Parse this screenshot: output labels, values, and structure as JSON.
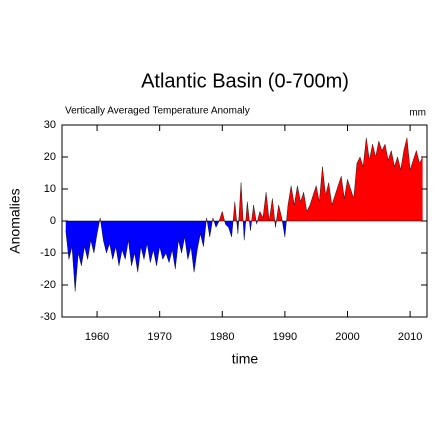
{
  "chart_data": {
    "type": "area",
    "title": "Atlantic Basin (0-700m)",
    "subtitle": "Vertically Averaged Temperature Anomaly",
    "unit_label": "mm",
    "x_label": "time",
    "y_label": "Anomalies",
    "pos_color": "#ff0000",
    "neg_color": "#0000ff",
    "grid": false,
    "xlim": [
      1954.4,
      2012.7
    ],
    "ylim": [
      -30,
      30
    ],
    "xticks": [
      1960,
      1970,
      1980,
      1990,
      2000,
      2010
    ],
    "yticks": [
      -30,
      -20,
      -10,
      0,
      10,
      20,
      30
    ],
    "x": [
      1955,
      1955.5,
      1956,
      1956.5,
      1957,
      1957.5,
      1958,
      1958.5,
      1959,
      1959.5,
      1960,
      1960.5,
      1961,
      1961.5,
      1962,
      1962.5,
      1963,
      1963.5,
      1964,
      1964.5,
      1965,
      1965.5,
      1966,
      1966.5,
      1967,
      1967.5,
      1968,
      1968.5,
      1969,
      1969.5,
      1970,
      1970.5,
      1971,
      1971.5,
      1972,
      1972.5,
      1973,
      1973.5,
      1974,
      1974.5,
      1975,
      1975.5,
      1976,
      1976.5,
      1977,
      1977.5,
      1978,
      1978.5,
      1979,
      1979.5,
      1980,
      1980.5,
      1981,
      1981.5,
      1982,
      1982.5,
      1983,
      1983.5,
      1984,
      1984.5,
      1985,
      1985.5,
      1986,
      1986.5,
      1987,
      1987.5,
      1988,
      1988.5,
      1989,
      1989.5,
      1990,
      1990.5,
      1991,
      1991.5,
      1992,
      1992.5,
      1993,
      1993.5,
      1994,
      1994.5,
      1995,
      1995.5,
      1996,
      1996.5,
      1997,
      1997.5,
      1998,
      1998.5,
      1999,
      1999.5,
      2000,
      2000.5,
      2001,
      2001.5,
      2002,
      2002.5,
      2003,
      2003.5,
      2004,
      2004.5,
      2005,
      2005.5,
      2006,
      2006.5,
      2007,
      2007.5,
      2008,
      2008.5,
      2009,
      2009.5,
      2010,
      2010.5,
      2011,
      2011.5,
      2012
    ],
    "values": [
      -3,
      -12,
      -8,
      -22,
      -10,
      -14,
      -8,
      -12,
      -6,
      -10,
      -4,
      1,
      -6,
      -10,
      -7,
      -12,
      -8,
      -14,
      -9,
      -12,
      -6,
      -14,
      -10,
      -16,
      -8,
      -12,
      -7,
      -13,
      -9,
      -14,
      -8,
      -12,
      -10,
      -13,
      -9,
      -15,
      -6,
      -10,
      -5,
      -12,
      -8,
      -16,
      -9,
      -4,
      -8,
      1,
      -5,
      1,
      -2,
      0,
      3,
      -1,
      -2,
      -5,
      6,
      -4,
      12,
      -6,
      6,
      -3,
      5,
      -1,
      3,
      1,
      9,
      0,
      7,
      -2,
      5,
      1,
      -5,
      5,
      11,
      5,
      11,
      6,
      9,
      3,
      5,
      8,
      11,
      6,
      17,
      8,
      12,
      5,
      8,
      11,
      14,
      7,
      13,
      10,
      7,
      18,
      20,
      17,
      26,
      19,
      24,
      20,
      25,
      22,
      24,
      19,
      22,
      17,
      20,
      16,
      22,
      26,
      16,
      19,
      22,
      18,
      20
    ]
  }
}
